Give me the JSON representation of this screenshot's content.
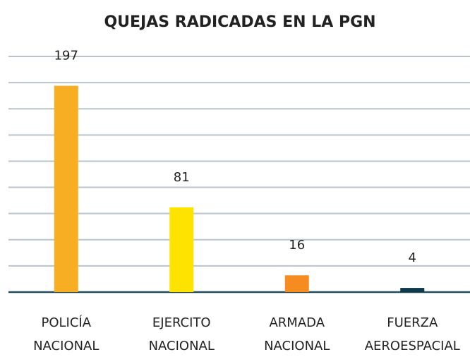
{
  "chart_data": {
    "type": "bar",
    "title": "QUEJAS RADICADAS EN LA PGN",
    "categories": [
      "POLICÍA NACIONAL",
      "EJERCITO NACIONAL",
      "ARMADA NACIONAL",
      "FUERZA AEROESPACIAL"
    ],
    "values": [
      197,
      81,
      16,
      4
    ],
    "colors": [
      "#f7ae22",
      "#ffe300",
      "#f68b1f",
      "#0f3a4c"
    ],
    "ylim": [
      0,
      225
    ],
    "yticks": [
      0,
      25,
      50,
      75,
      100,
      125,
      150,
      175,
      200,
      225
    ],
    "grid": true
  }
}
